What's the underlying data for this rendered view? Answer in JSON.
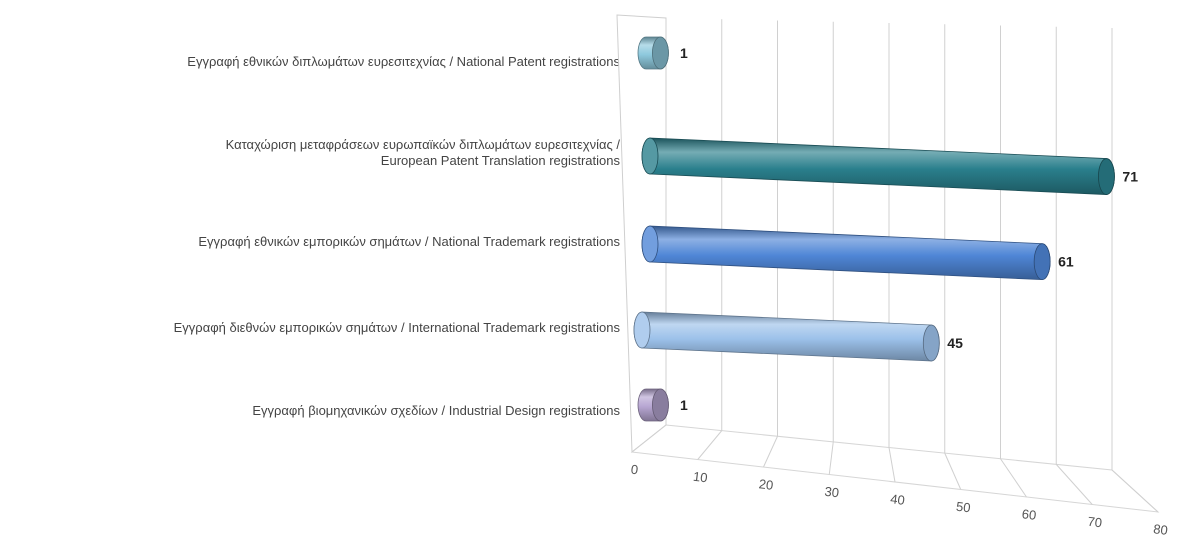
{
  "chart_data": {
    "type": "bar",
    "orientation": "horizontal",
    "style": "3d-cylinder",
    "categories": [
      "Εγγραφή εθνικών διπλωμάτων ευρεσιτεχνίας / National Patent registrations",
      "Καταχώριση μεταφράσεων ευρωπαϊκών διπλωμάτων ευρεσιτεχνίας / European Patent Translation registrations",
      "Εγγραφή εθνικών εμπορικών σημάτων / National Trademark registrations",
      "Εγγραφή διεθνών εμπορικών σημάτων / International Trademark registrations",
      "Εγγραφή βιομηχανικών σχεδίων / Industrial Design registrations"
    ],
    "values": [
      1,
      71,
      61,
      45,
      1
    ],
    "data_labels": [
      "1",
      "71",
      "61",
      "45",
      "1"
    ],
    "colors": [
      "#8ec9dd",
      "#2a7f8c",
      "#4f86d6",
      "#9cc1ea",
      "#b7a6d2"
    ],
    "xlim": [
      0,
      80
    ],
    "xticks": [
      "0",
      "10",
      "20",
      "30",
      "40",
      "50",
      "60",
      "70",
      "80"
    ],
    "grid": true,
    "legend": "none",
    "title": "",
    "xlabel": "",
    "ylabel": ""
  }
}
